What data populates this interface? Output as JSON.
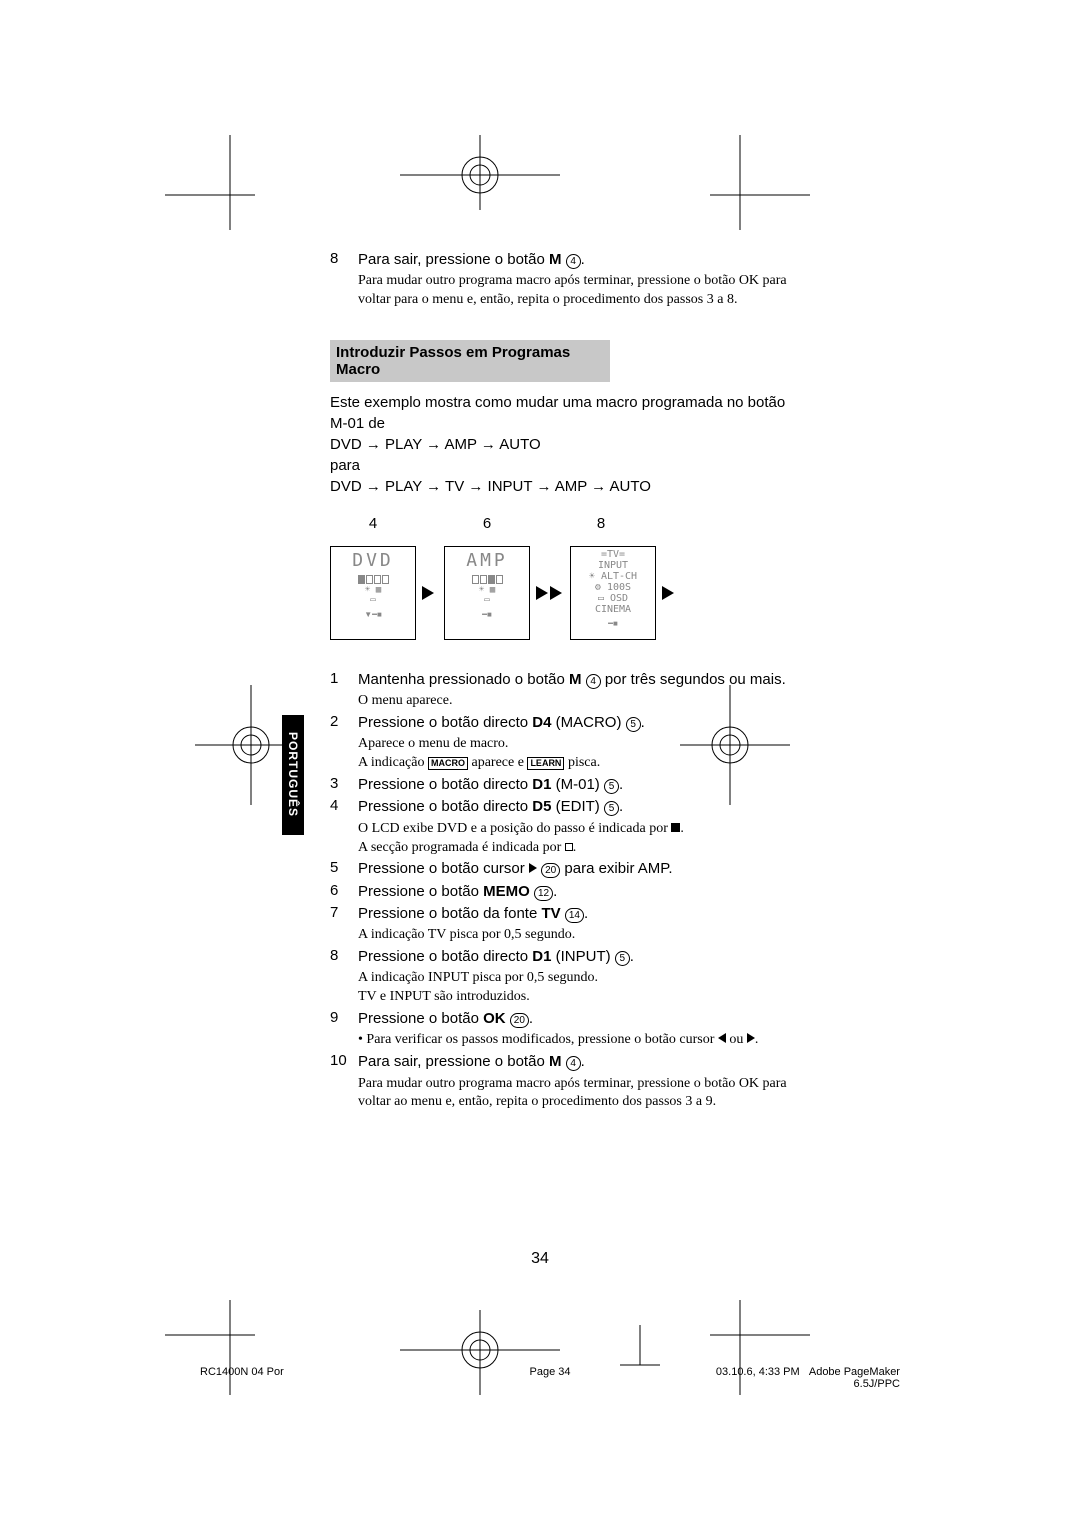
{
  "colors": {
    "bg": "#ffffff",
    "text": "#000000",
    "section_bg": "#c8c8c8",
    "lcd_text": "#888888"
  },
  "step8top": {
    "num": "8",
    "main_pre": "Para sair, pressione o botão ",
    "main_bold": "M",
    "main_circ": "4",
    "main_post": ".",
    "note": "Para mudar outro programa macro após terminar, pressione o botão OK para voltar para o menu e, então, repita o procedimento dos passos 3 a 8."
  },
  "section_title": "Introduzir Passos em Programas Macro",
  "intro": {
    "l1": "Este exemplo mostra como mudar uma macro programada no botão M-01 de",
    "l2": "DVD → PLAY → AMP → AUTO",
    "l3": "para",
    "l4": "DVD → PLAY → TV → INPUT → AMP → AUTO"
  },
  "lcd": {
    "labels": [
      "4",
      "6",
      "8"
    ],
    "panel1": "DVD",
    "panel2": "AMP",
    "panel3": [
      "=TV=",
      "INPUT",
      "ALT-CH",
      "100S",
      "OSD",
      "CINEMA"
    ]
  },
  "steps": [
    {
      "num": "1",
      "main": [
        "Mantenha pressionado o botão ",
        "M",
        " ",
        {
          "circ": "4"
        },
        " por três segundos ou mais."
      ],
      "note": "O menu aparece."
    },
    {
      "num": "2",
      "main": [
        "Pressione o botão directo ",
        "D4",
        " (MACRO) ",
        {
          "circ": "5"
        },
        "."
      ],
      "note_parts": [
        "Aparece o menu de macro.",
        "A indicação ",
        {
          "box": "MACRO"
        },
        " aparece e ",
        {
          "box": "LEARN"
        },
        " pisca."
      ]
    },
    {
      "num": "3",
      "main": [
        "Pressione o botão directo ",
        "D1",
        " (M-01) ",
        {
          "circ": "5"
        },
        "."
      ]
    },
    {
      "num": "4",
      "main": [
        "Pressione o botão directo ",
        "D5",
        " (EDIT) ",
        {
          "circ": "5"
        },
        "."
      ],
      "note_parts": [
        "O LCD exibe DVD e a posição do passo é indicada por ",
        {
          "sq": true
        },
        ".",
        "A secção programada é indicada por ",
        {
          "sqo": true
        },
        "."
      ]
    },
    {
      "num": "5",
      "main": [
        "Pressione o botão cursor ",
        {
          "tri_r": true
        },
        " ",
        {
          "circw": "20"
        },
        " para exibir AMP."
      ]
    },
    {
      "num": "6",
      "main": [
        "Pressione o botão ",
        "MEMO",
        " ",
        {
          "circw": "12"
        },
        "."
      ]
    },
    {
      "num": "7",
      "main": [
        "Pressione o botão da fonte ",
        "TV",
        " ",
        {
          "circw": "14"
        },
        "."
      ],
      "note": "A indicação TV pisca por 0,5 segundo."
    },
    {
      "num": "8",
      "main": [
        "Pressione o botão directo ",
        "D1",
        " (INPUT) ",
        {
          "circ": "5"
        },
        "."
      ],
      "note_parts": [
        "A indicação INPUT pisca por 0,5 segundo.",
        "TV e INPUT são introduzidos."
      ]
    },
    {
      "num": "9",
      "main": [
        "Pressione o botão ",
        "OK",
        " ",
        {
          "circw": "20"
        },
        "."
      ],
      "note_parts": [
        "• Para verificar os passos modificados, pressione o botão cursor ",
        {
          "tri_l": true
        },
        " ou ",
        {
          "tri_r": true
        },
        "."
      ]
    },
    {
      "num": "10",
      "main": [
        "Para sair, pressione o botão ",
        "M",
        " ",
        {
          "circ": "4"
        },
        "."
      ],
      "note": "Para mudar outro programa macro após terminar, pressione o botão OK para voltar ao menu e, então, repita o procedimento dos passos 3 a 9."
    }
  ],
  "page_number": "34",
  "lang_tab": "PORTUGUÊS",
  "footer": {
    "left": "RC1400N 04 Por",
    "center": "Page 34",
    "right1": "03.10.6, 4:33 PM",
    "right2": "Adobe PageMaker 6.5J/PPC"
  }
}
